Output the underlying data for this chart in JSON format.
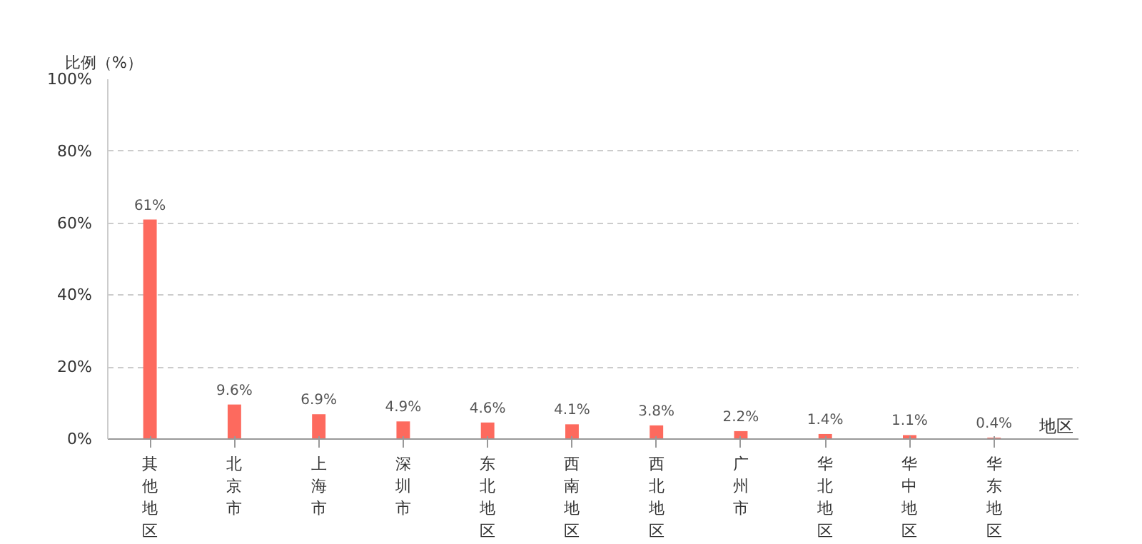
{
  "chart_data": {
    "type": "bar",
    "ylabel": "比例（%）",
    "xlabel": "地区",
    "categories": [
      "其他地区",
      "北京市",
      "上海市",
      "深圳市",
      "东北地区",
      "西南地区",
      "西北地区",
      "广州市",
      "华北地区",
      "华中地区",
      "华东地区"
    ],
    "values": [
      61,
      9.6,
      6.9,
      4.9,
      4.6,
      4.1,
      3.8,
      2.2,
      1.4,
      1.1,
      0.4
    ],
    "value_labels": [
      "61%",
      "9.6%",
      "6.9%",
      "4.9%",
      "4.6%",
      "4.1%",
      "3.8%",
      "2.2%",
      "1.4%",
      "1.1%",
      "0.4%"
    ],
    "color": "#fd6a5e",
    "ylim": [
      0,
      100
    ],
    "yticks": [
      {
        "value": 0,
        "label": "0%"
      },
      {
        "value": 20,
        "label": "20%"
      },
      {
        "value": 40,
        "label": "40%"
      },
      {
        "value": 60,
        "label": "60%"
      },
      {
        "value": 80,
        "label": "80%"
      },
      {
        "value": 100,
        "label": "100%"
      }
    ],
    "grid": "y"
  }
}
